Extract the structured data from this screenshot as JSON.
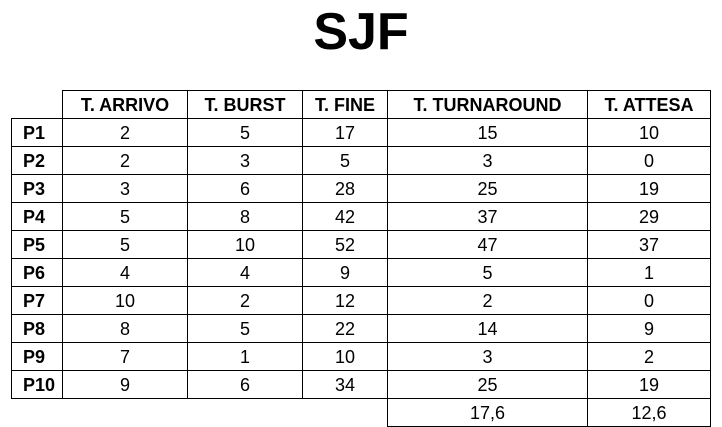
{
  "title": "SJF",
  "headers": [
    "",
    "T. ARRIVO",
    "T. BURST",
    "T. FINE",
    "T. TURNAROUND",
    "T. ATTESA"
  ],
  "rows": [
    [
      "P1",
      "2",
      "5",
      "17",
      "15",
      "10"
    ],
    [
      "P2",
      "2",
      "3",
      "5",
      "3",
      "0"
    ],
    [
      "P3",
      "3",
      "6",
      "28",
      "25",
      "19"
    ],
    [
      "P4",
      "5",
      "8",
      "42",
      "37",
      "29"
    ],
    [
      "P5",
      "5",
      "10",
      "52",
      "47",
      "37"
    ],
    [
      "P6",
      "4",
      "4",
      "9",
      "5",
      "1"
    ],
    [
      "P7",
      "10",
      "2",
      "12",
      "2",
      "0"
    ],
    [
      "P8",
      "8",
      "5",
      "22",
      "14",
      "9"
    ],
    [
      "P9",
      "7",
      "1",
      "10",
      "3",
      "2"
    ],
    [
      "P10",
      "9",
      "6",
      "34",
      "25",
      "19"
    ]
  ],
  "averages": {
    "turnaround": "17,6",
    "attesa": "12,6"
  }
}
